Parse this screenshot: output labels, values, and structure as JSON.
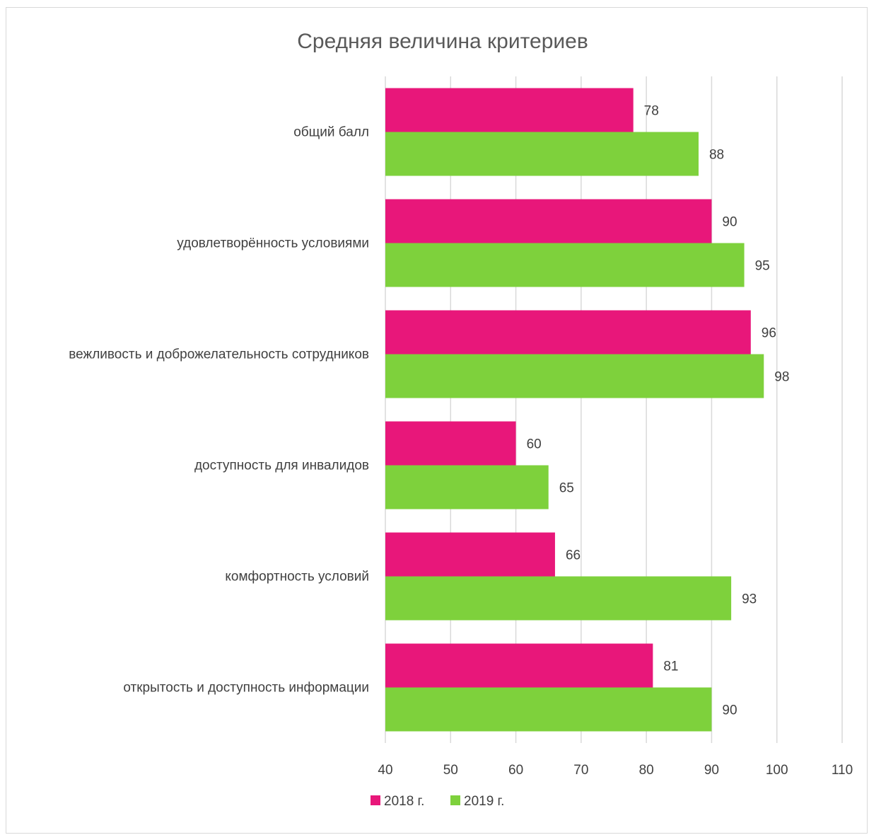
{
  "chart_data": {
    "type": "bar",
    "orientation": "horizontal",
    "title": "Средняя величина критериев",
    "xlabel": "",
    "ylabel": "",
    "categories": [
      "общий балл",
      "удовлетворённость условиями",
      "вежливость и доброжелательность сотрудников",
      "доступность для инвалидов",
      "комфортность условий",
      "открытость и доступность информации"
    ],
    "series": [
      {
        "name": "2018 г.",
        "color": "#e8177a",
        "values": [
          78,
          90,
          96,
          60,
          66,
          81
        ]
      },
      {
        "name": "2019 г.",
        "color": "#7ed13c",
        "values": [
          88,
          95,
          98,
          65,
          93,
          90
        ]
      }
    ],
    "xlim": [
      40,
      110
    ],
    "xticks": [
      40,
      50,
      60,
      70,
      80,
      90,
      100,
      110
    ],
    "grid": "vertical",
    "legend": "bottom",
    "data_labels": true
  }
}
